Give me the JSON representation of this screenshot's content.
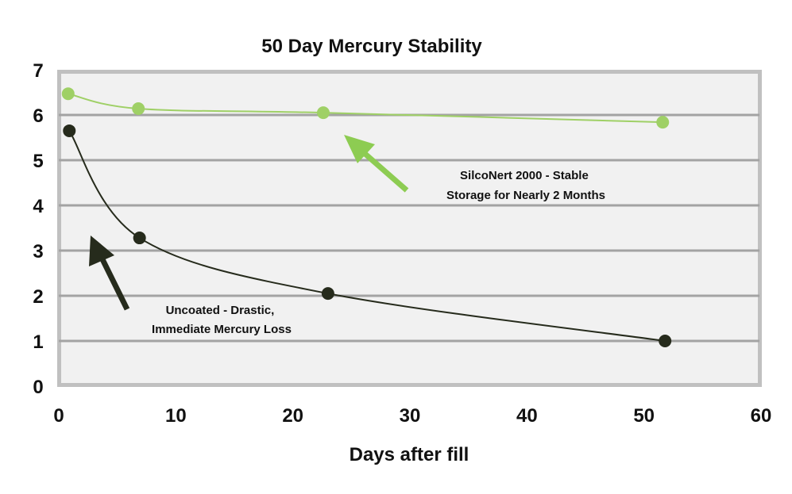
{
  "chart_data": {
    "type": "scatter",
    "title": "50 Day Mercury Stability",
    "xlabel": "Days after fill",
    "ylabel": "",
    "xlim": [
      0,
      60
    ],
    "ylim": [
      0,
      7
    ],
    "xticks": [
      "0",
      "10",
      "20",
      "30",
      "40",
      "50",
      "60"
    ],
    "yticks": [
      "0",
      "1",
      "2",
      "3",
      "4",
      "5",
      "6",
      "7"
    ],
    "grid": "horizontal",
    "series": [
      {
        "color": "#9fd066",
        "x": [
          0.8,
          6.8,
          22.6,
          51.6
        ],
        "y": [
          6.47,
          6.14,
          6.05,
          5.84
        ]
      },
      {
        "color": "#262b1c",
        "x": [
          0.9,
          6.9,
          23.0,
          51.8
        ],
        "y": [
          5.65,
          3.28,
          2.05,
          1.0
        ]
      }
    ],
    "annotations": [
      {
        "lines": [
          "SilcoNert 2000 - Stable",
          "Storage for Nearly 2 Months"
        ],
        "color": "#8dcc52"
      },
      {
        "lines": [
          "Uncoated - Drastic,",
          "Immediate Mercury Loss"
        ],
        "color": "#262b1c"
      }
    ],
    "colors": {
      "plot_background": "#f1f1f1",
      "frame": "#c0c0c0",
      "gridline": "#a3a3a3"
    }
  }
}
